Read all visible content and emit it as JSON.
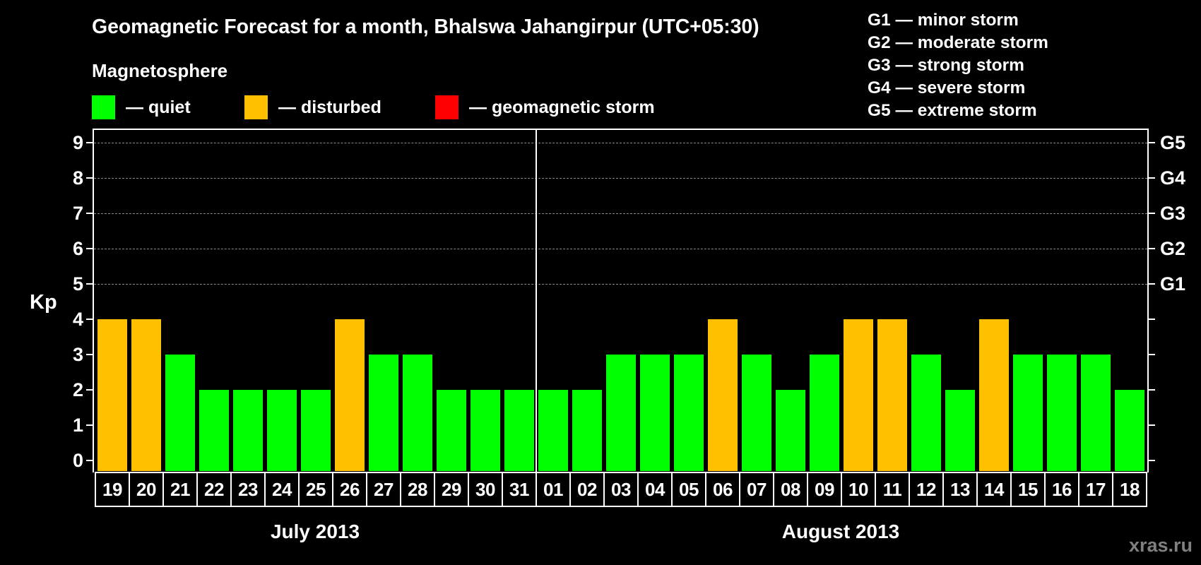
{
  "header": {
    "title": "Geomagnetic Forecast for a month, Bhalswa Jahangirpur (UTC+05:30)",
    "magnetosphere_heading": "Magnetosphere"
  },
  "legend": {
    "items": [
      {
        "label": "— quiet",
        "color": "#00FF00",
        "x": 130
      },
      {
        "label": "— disturbed",
        "color": "#FFC000",
        "x": 346
      },
      {
        "label": "— geomagnetic storm",
        "color": "#FF0000",
        "x": 616
      }
    ]
  },
  "storm_scale": {
    "items": [
      {
        "label": "G1 — minor storm"
      },
      {
        "label": "G2 — moderate storm"
      },
      {
        "label": "G3 — strong storm"
      },
      {
        "label": "G4 — severe storm"
      },
      {
        "label": "G5 — extreme storm"
      }
    ]
  },
  "axis": {
    "y_label": "Kp",
    "y_ticks": [
      "0",
      "1",
      "2",
      "3",
      "4",
      "5",
      "6",
      "7",
      "8",
      "9"
    ],
    "right_ticks": [
      {
        "kp": 5,
        "label": "G1"
      },
      {
        "kp": 6,
        "label": "G2"
      },
      {
        "kp": 7,
        "label": "G3"
      },
      {
        "kp": 8,
        "label": "G4"
      },
      {
        "kp": 9,
        "label": "G5"
      }
    ]
  },
  "months": [
    {
      "label": "July 2013",
      "start_index": 0,
      "count": 13
    },
    {
      "label": "August 2013",
      "start_index": 13,
      "count": 18
    }
  ],
  "colors": {
    "quiet": "#00FF00",
    "disturbed": "#FFC000",
    "storm": "#FF0000",
    "background": "#000000",
    "grid": "#8a8a8a",
    "watermark": "#808080"
  },
  "watermark": "xras.ru",
  "chart_data": {
    "type": "bar",
    "title": "Geomagnetic Forecast for a month, Bhalswa Jahangirpur (UTC+05:30)",
    "xlabel": "",
    "ylabel": "Kp",
    "ylim": [
      0,
      9
    ],
    "grid": "dashed horizontal at Kp 5-9",
    "categories": [
      "19",
      "20",
      "21",
      "22",
      "23",
      "24",
      "25",
      "26",
      "27",
      "28",
      "29",
      "30",
      "31",
      "01",
      "02",
      "03",
      "04",
      "05",
      "06",
      "07",
      "08",
      "09",
      "10",
      "11",
      "12",
      "13",
      "14",
      "15",
      "16",
      "17",
      "18"
    ],
    "month_groups": [
      {
        "label": "July 2013",
        "days": [
          "19",
          "20",
          "21",
          "22",
          "23",
          "24",
          "25",
          "26",
          "27",
          "28",
          "29",
          "30",
          "31"
        ]
      },
      {
        "label": "August 2013",
        "days": [
          "01",
          "02",
          "03",
          "04",
          "05",
          "06",
          "07",
          "08",
          "09",
          "10",
          "11",
          "12",
          "13",
          "14",
          "15",
          "16",
          "17",
          "18"
        ]
      }
    ],
    "values": [
      4,
      4,
      3,
      2,
      2,
      2,
      2,
      4,
      3,
      3,
      2,
      2,
      2,
      2,
      2,
      3,
      3,
      3,
      4,
      3,
      2,
      3,
      4,
      4,
      3,
      2,
      4,
      3,
      3,
      3,
      2
    ],
    "status": [
      "disturbed",
      "disturbed",
      "quiet",
      "quiet",
      "quiet",
      "quiet",
      "quiet",
      "disturbed",
      "quiet",
      "quiet",
      "quiet",
      "quiet",
      "quiet",
      "quiet",
      "quiet",
      "quiet",
      "quiet",
      "quiet",
      "disturbed",
      "quiet",
      "quiet",
      "quiet",
      "disturbed",
      "disturbed",
      "quiet",
      "quiet",
      "disturbed",
      "quiet",
      "quiet",
      "quiet",
      "quiet"
    ],
    "legend": [
      "quiet",
      "disturbed",
      "geomagnetic storm"
    ],
    "right_axis_labels": {
      "5": "G1",
      "6": "G2",
      "7": "G3",
      "8": "G4",
      "9": "G5"
    }
  }
}
